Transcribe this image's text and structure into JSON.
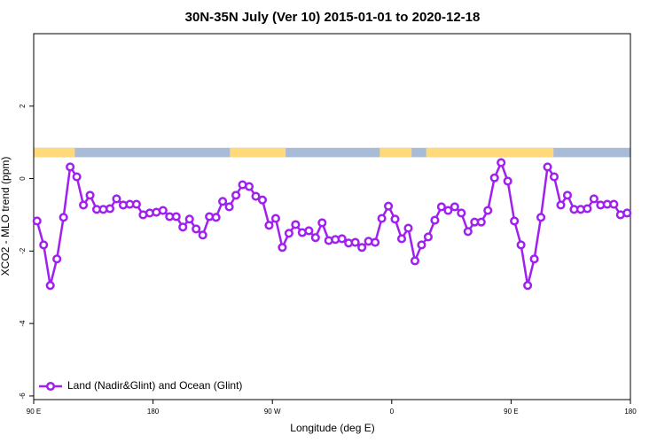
{
  "chart_data": {
    "type": "line",
    "title": "30N-35N July (Ver 10)   2015-01-01 to 2020-12-18",
    "x_label": "Longitude (deg E)",
    "y_label": "XCO2 - MLO trend (ppm)",
    "xlim": [
      90,
      540
    ],
    "xticks": [
      {
        "value": 90,
        "label": "90 E"
      },
      {
        "value": 180,
        "label": "180"
      },
      {
        "value": 270,
        "label": "90 W"
      },
      {
        "value": 360,
        "label": "0"
      },
      {
        "value": 450,
        "label": "90 E"
      },
      {
        "value": 540,
        "label": "180"
      }
    ],
    "ylim": [
      -6.1,
      4
    ],
    "yticks": [
      -6,
      -4,
      -2,
      0,
      2
    ],
    "legend": "bottom-left",
    "mask": {
      "ylim": [
        0.59,
        0.85
      ],
      "ocean_color": "#a8bcd8",
      "land_color": "#ffd97a",
      "land": [
        [
          90,
          121
        ],
        [
          238,
          280
        ],
        [
          351,
          375
        ],
        [
          386,
          482
        ]
      ]
    },
    "x": [
      92.5,
      97.5,
      102.5,
      107.5,
      112.5,
      117.5,
      122.5,
      127.5,
      132.5,
      137.5,
      142.5,
      147.5,
      152.5,
      157.5,
      162.5,
      167.5,
      172.5,
      177.5,
      182.5,
      187.5,
      192.5,
      197.5,
      202.5,
      207.5,
      212.5,
      217.5,
      222.5,
      227.5,
      232.5,
      237.5,
      242.5,
      247.5,
      252.5,
      257.5,
      262.5,
      267.5,
      272.5,
      277.5,
      282.5,
      287.5,
      292.5,
      297.5,
      302.5,
      307.5,
      312.5,
      317.5,
      322.5,
      327.5,
      332.5,
      337.5,
      342.5,
      347.5,
      352.5,
      357.5,
      362.5,
      367.5,
      372.5,
      377.5,
      382.5,
      387.5,
      392.5,
      397.5,
      402.5,
      407.5,
      412.5,
      417.5,
      422.5,
      427.5,
      432.5,
      437.5,
      442.5,
      447.5,
      452.5,
      457.5,
      462.5,
      467.5,
      472.5,
      477.5,
      482.5,
      487.5,
      492.5,
      497.5,
      502.5,
      507.5,
      512.5,
      517.5,
      522.5,
      527.5,
      532.5,
      537.5
    ],
    "series": [
      {
        "name": "Land (Nadir&Glint) and Ocean (Glint)",
        "color": "#a020f0",
        "values": [
          -1.17,
          -1.83,
          -2.95,
          -2.22,
          -1.07,
          0.32,
          0.05,
          -0.73,
          -0.46,
          -0.85,
          -0.85,
          -0.83,
          -0.56,
          -0.73,
          -0.71,
          -0.71,
          -1.0,
          -0.95,
          -0.93,
          -0.88,
          -1.05,
          -1.05,
          -1.34,
          -1.12,
          -1.39,
          -1.56,
          -1.05,
          -1.07,
          -0.63,
          -0.78,
          -0.46,
          -0.17,
          -0.22,
          -0.49,
          -0.59,
          -1.29,
          -1.1,
          -1.9,
          -1.51,
          -1.27,
          -1.49,
          -1.44,
          -1.63,
          -1.22,
          -1.71,
          -1.68,
          -1.66,
          -1.78,
          -1.76,
          -1.9,
          -1.73,
          -1.76,
          -1.1,
          -0.76,
          -1.12,
          -1.66,
          -1.37,
          -2.27,
          -1.83,
          -1.61,
          -1.15,
          -0.78,
          -0.88,
          -0.78,
          -0.95,
          -1.46,
          -1.2,
          -1.2,
          -0.88,
          0.02,
          0.44,
          -0.07,
          -1.17,
          -1.83,
          -2.95,
          -2.22,
          -1.07,
          0.32,
          0.05,
          -0.73,
          -0.46,
          -0.85,
          -0.85,
          -0.83,
          -0.56,
          -0.73,
          -0.71,
          -0.71,
          -1.0,
          -0.95
        ]
      }
    ]
  }
}
